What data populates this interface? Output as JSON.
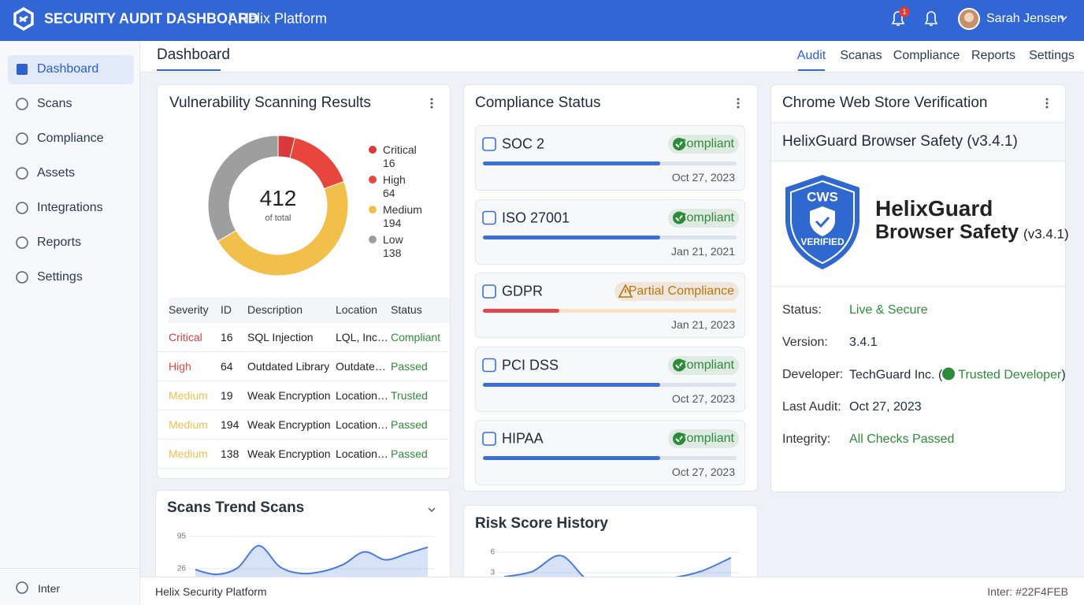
{
  "header": {
    "brand": "SECURITY AUDIT DASHBOARD",
    "platform": "Helix Platform",
    "notification_count": "1",
    "user": "Sarah Jensen"
  },
  "sidebar": {
    "items": [
      "Dashboard",
      "Scans",
      "Compliance",
      "Assets",
      "Integrations",
      "Reports",
      "Settings"
    ],
    "footer": "Inter"
  },
  "page": {
    "title": "Dashboard",
    "tabs": [
      "Audit",
      "Scanas",
      "Compliance",
      "Reports",
      "Settings"
    ]
  },
  "vulnerability": {
    "title": "Vulnerability Scanning Results",
    "total": 412,
    "total_label": "of total",
    "segments": [
      {
        "name": "Critical",
        "value": 16,
        "color": "#d93a3a"
      },
      {
        "name": "High",
        "value": 64,
        "color": "#e8453c"
      },
      {
        "name": "Medium",
        "value": 194,
        "color": "#f2bf4b"
      },
      {
        "name": "Low",
        "value": 138,
        "color": "#9e9e9e"
      }
    ],
    "table": {
      "columns": [
        "Severity",
        "ID",
        "Description",
        "Location",
        "Status"
      ],
      "rows": [
        [
          "Critical",
          16,
          "SQL Injection",
          "LQL, Inc…",
          "Compliant"
        ],
        [
          "High",
          64,
          "Outdated Library",
          "Outdate…",
          "Passed"
        ],
        [
          "Medium",
          19,
          "Weak Encryption",
          "Location…",
          "Trusted"
        ],
        [
          "Medium",
          194,
          "Weak Encryption",
          "Location…",
          "Passed"
        ],
        [
          "Medium",
          138,
          "Weak Encryption",
          "Location…",
          "Passed"
        ]
      ],
      "status_color": "#2e8b3a"
    }
  },
  "compliance": {
    "title": "Compliance Status",
    "items": [
      {
        "name": "SOC 2",
        "status": "Compliant",
        "date": "Oct 27, 2023",
        "progress": 70,
        "bar_color": "#3a6fd8",
        "status_color": "#2e8b3a"
      },
      {
        "name": "ISO 27001",
        "status": "Compliant",
        "date": "Jan 21, 2021",
        "progress": 70,
        "bar_color": "#3a6fd8",
        "status_color": "#2e8b3a"
      },
      {
        "name": "GDPR",
        "status": "Partial Compliance",
        "date": "Jan 21, 2023",
        "progress": 30,
        "bar_color": "#e04848",
        "status_color": "#b9770e"
      },
      {
        "name": "PCI DSS",
        "status": "Compliant",
        "date": "Oct 27, 2023",
        "progress": 70,
        "bar_color": "#3a6fd8",
        "status_color": "#2e8b3a"
      },
      {
        "name": "HIPAA",
        "status": "Compliant",
        "date": "Oct 27, 2023",
        "progress": 70,
        "bar_color": "#3a6fd8",
        "status_color": "#2e8b3a"
      }
    ]
  },
  "chrome": {
    "title": "Chrome Web Store Verification",
    "subtitle": "HelixGuard Browser Safety (v3.4.1)",
    "badge_top": "CWS",
    "badge_bottom": "VERIFIED",
    "name": "HelixGuard",
    "product": "Browser Safety",
    "version": "(v3.4.1)",
    "fields": [
      {
        "label": "Status:",
        "value": "Live & Secure",
        "color": "#2e8b3a"
      },
      {
        "label": "Version:",
        "value": "3.4.1",
        "color": "#1f2a3c"
      },
      {
        "label": "Developer:",
        "value": "TechGuard Inc. (",
        "badge": "Trusted Developer",
        "suffix": ")",
        "color": "#1f2a3c"
      },
      {
        "label": "Last Audit:",
        "value": "Oct 27, 2023",
        "color": "#1f2a3c"
      },
      {
        "label": "Integrity:",
        "value": "All Checks Passed",
        "color": "#2e8b3a"
      }
    ]
  },
  "scans_trend": {
    "type": "line",
    "title": "Scans Trend Scans",
    "ylim": [
      0,
      110
    ],
    "yticks": [
      26,
      95
    ],
    "values": [
      24,
      14,
      28,
      75,
      30,
      16,
      20,
      35,
      62,
      45,
      58,
      72
    ],
    "color": "#4a7bdc"
  },
  "risk_history": {
    "type": "line",
    "title": "Risk Score History",
    "ylim": [
      0,
      7
    ],
    "yticks": [
      3,
      6
    ],
    "values": [
      2.4,
      3.2,
      5.5,
      1.8,
      2.0,
      2.1,
      2.3,
      3.3,
      5.2
    ],
    "color": "#4a7bdc"
  },
  "footer": {
    "left": "Helix Security Platform",
    "right": "Inter: #22F4FEB"
  }
}
